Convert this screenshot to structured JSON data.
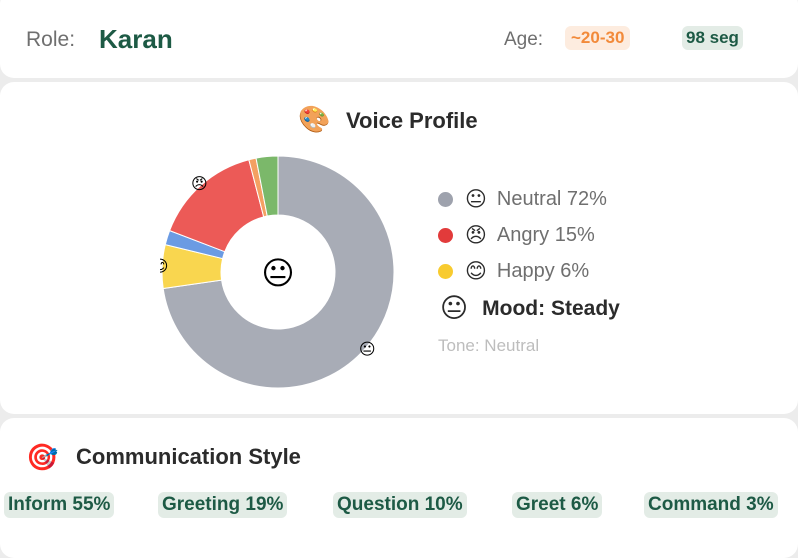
{
  "header": {
    "role_label": "Role:",
    "role_value": "Karan",
    "age_label": "Age:",
    "age_value": "~20-30",
    "duration": "98 seg"
  },
  "voice_profile": {
    "title_icon": "palette-icon",
    "title": "Voice Profile",
    "center_emoji": "😐",
    "legend": [
      {
        "emoji": "😐",
        "text": "Neutral 72%",
        "color": "#9ea2ad"
      },
      {
        "emoji": "😠",
        "text": "Angry 15%",
        "color": "#e23b3b"
      },
      {
        "emoji": "😊",
        "text": "Happy 6%",
        "color": "#f8cb2f"
      }
    ],
    "mood_emoji": "😐",
    "mood_text": "Mood: Steady",
    "tone_text": "Tone: Neutral"
  },
  "chart_data": {
    "type": "pie",
    "donut": true,
    "slices": [
      {
        "label": "Neutral",
        "value": 72,
        "color": "#a8acb6"
      },
      {
        "label": "",
        "value": 6,
        "color": "#f9d64f"
      },
      {
        "label": "",
        "value": 2,
        "color": "#6b9be3"
      },
      {
        "label": "Angry",
        "value": 15,
        "color": "#ec5a57"
      },
      {
        "label": "",
        "value": 1,
        "color": "#f4a062"
      },
      {
        "label": "",
        "value": 3,
        "color": "#7bb86a"
      }
    ],
    "slice_emojis": {
      "Neutral": "😐",
      "Happy": "😊",
      "Angry": "😠"
    },
    "center_emoji": "😐"
  },
  "communication": {
    "title_icon": "target-icon",
    "title": "Communication Style",
    "pills": [
      "Inform 55%",
      "Greeting 19%",
      "Question 10%",
      "Greet 6%",
      "Command 3%"
    ]
  }
}
